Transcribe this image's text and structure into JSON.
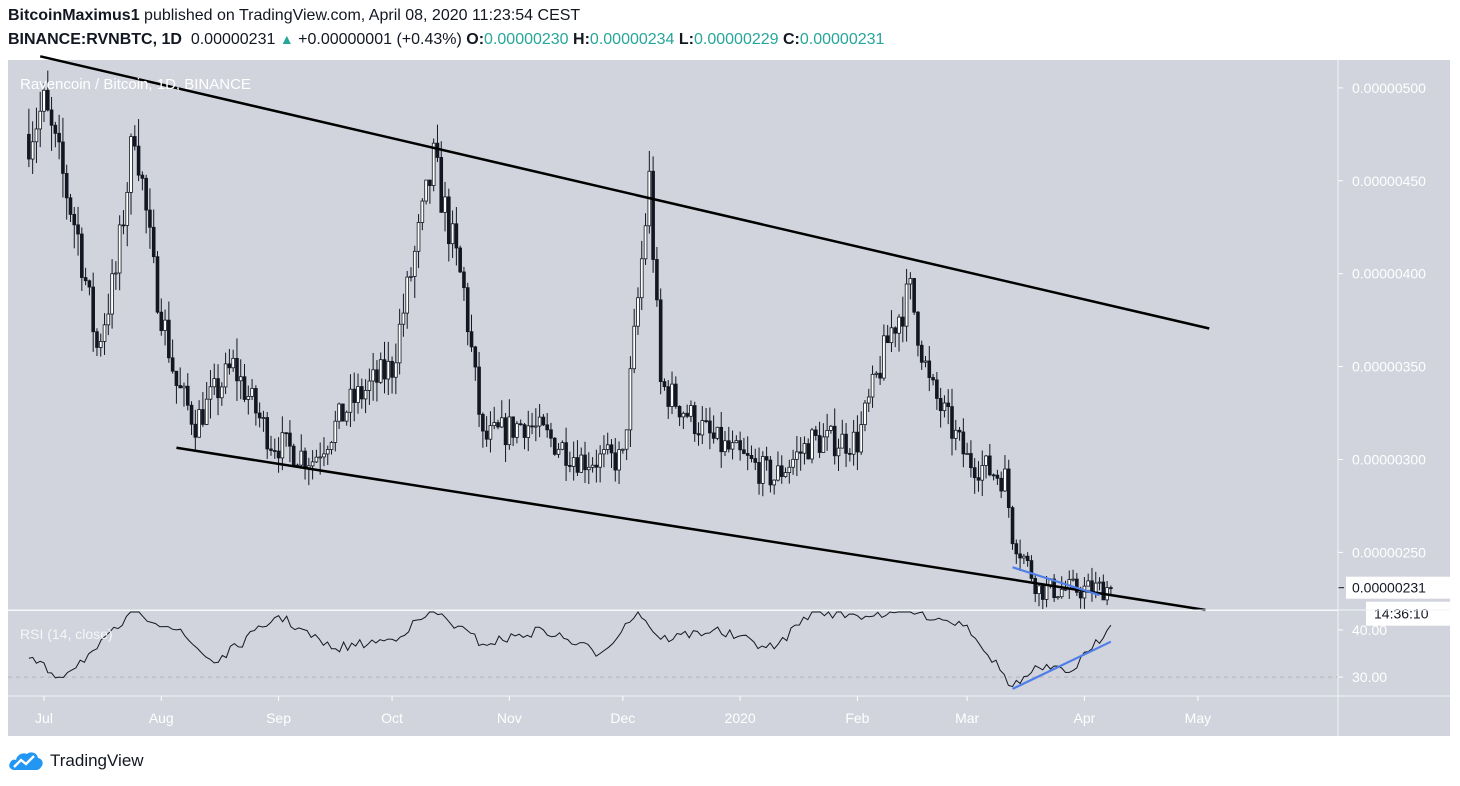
{
  "header": {
    "author": "BitcoinMaximus1",
    "published_text": "published on TradingView.com, April 08, 2020 11:23:54 CEST",
    "symbol": "BINANCE:RVNBTC, 1D",
    "last": "0.00000231",
    "change": "+0.00000001 (+0.43%)",
    "o_label": "O:",
    "o": "0.00000230",
    "h_label": "H:",
    "h": "0.00000234",
    "l_label": "L:",
    "l": "0.00000229",
    "c_label": "C:",
    "c": "0.00000231"
  },
  "colors": {
    "bg": "#d1d4dc",
    "candle": "#131722",
    "trend": "#000000",
    "blue": "#4f7ee8",
    "up": "#26a69a"
  },
  "chart_data": [
    {
      "type": "candlestick",
      "title": "Ravencoin / Bitcoin, 1D, BINANCE",
      "x_ticks": [
        "Jul",
        "Aug",
        "Sep",
        "Oct",
        "Nov",
        "Dec",
        "2020",
        "Feb",
        "Mar",
        "Apr",
        "May"
      ],
      "y_ticks": [
        5e-06,
        4.5e-06,
        4e-06,
        3.5e-06,
        3e-06,
        2.5e-06
      ],
      "y_tick_labels": [
        "0.00000500",
        "0.00000450",
        "0.00000400",
        "0.00000350",
        "0.00000300",
        "0.00000250"
      ],
      "ylim": [
        2.19e-06,
        5.15e-06
      ],
      "last_price_label": "0.00000231",
      "countdown": "14:36:10",
      "trendlines": [
        {
          "name": "channel-top",
          "from": [
            "2019-06-30",
            5.17e-06
          ],
          "to": [
            "2020-05-04",
            3.705e-06
          ]
        },
        {
          "name": "channel-bottom",
          "from": [
            "2019-08-05",
            3.063e-06
          ],
          "to": [
            "2020-05-03",
            2.19e-06
          ]
        },
        {
          "name": "price-support",
          "from": [
            "2020-03-13",
            2.42e-06
          ],
          "to": [
            "2020-04-05",
            2.27e-06
          ]
        }
      ],
      "closes": [
        [
          "2019-06-27",
          4.75e-06
        ],
        [
          "2019-07-01",
          4.9e-06
        ],
        [
          "2019-07-05",
          4.6e-06
        ],
        [
          "2019-07-10",
          4.2e-06
        ],
        [
          "2019-07-15",
          3.6e-06
        ],
        [
          "2019-07-20",
          4e-06
        ],
        [
          "2019-07-25",
          4.8e-06
        ],
        [
          "2019-07-30",
          4e-06
        ],
        [
          "2019-08-05",
          3.4e-06
        ],
        [
          "2019-08-10",
          3.2e-06
        ],
        [
          "2019-08-20",
          3.5e-06
        ],
        [
          "2019-08-30",
          3.1e-06
        ],
        [
          "2019-09-10",
          3e-06
        ],
        [
          "2019-09-20",
          3.3e-06
        ],
        [
          "2019-10-01",
          3.5e-06
        ],
        [
          "2019-10-12",
          4.6e-06
        ],
        [
          "2019-10-20",
          3.9e-06
        ],
        [
          "2019-10-25",
          3.1e-06
        ],
        [
          "2019-11-05",
          3.2e-06
        ],
        [
          "2019-11-20",
          3e-06
        ],
        [
          "2019-12-01",
          3e-06
        ],
        [
          "2019-12-08",
          4.5e-06
        ],
        [
          "2019-12-11",
          3.4e-06
        ],
        [
          "2019-12-25",
          3.1e-06
        ],
        [
          "2020-01-10",
          2.9e-06
        ],
        [
          "2020-01-20",
          3.1e-06
        ],
        [
          "2020-02-01",
          3.1e-06
        ],
        [
          "2020-02-10",
          3.7e-06
        ],
        [
          "2020-02-15",
          3.9e-06
        ],
        [
          "2020-02-20",
          3.4e-06
        ],
        [
          "2020-03-01",
          3e-06
        ],
        [
          "2020-03-11",
          2.9e-06
        ],
        [
          "2020-03-13",
          2.6e-06
        ],
        [
          "2020-03-20",
          2.3e-06
        ],
        [
          "2020-04-01",
          2.3e-06
        ],
        [
          "2020-04-08",
          2.31e-06
        ]
      ]
    },
    {
      "type": "line",
      "title": "RSI (14, close)",
      "y_ticks": [
        40,
        30
      ],
      "y_tick_labels": [
        "40.00",
        "30.00"
      ],
      "ylim": [
        26,
        44
      ],
      "trendlines": [
        {
          "name": "rsi-divergence",
          "from": [
            "2020-03-13",
            27.5
          ],
          "to": [
            "2020-04-08",
            37.5
          ]
        }
      ],
      "x": [
        "2019-06-27",
        "2019-07-05",
        "2019-07-15",
        "2019-07-25",
        "2019-08-05",
        "2019-08-15",
        "2019-09-01",
        "2019-09-15",
        "2019-10-01",
        "2019-10-12",
        "2019-10-25",
        "2019-11-10",
        "2019-11-25",
        "2019-12-05",
        "2019-12-11",
        "2019-12-25",
        "2020-01-10",
        "2020-01-20",
        "2020-02-01",
        "2020-02-15",
        "2020-03-01",
        "2020-03-13",
        "2020-03-20",
        "2020-03-28",
        "2020-04-03",
        "2020-04-08"
      ],
      "y": [
        34,
        30,
        36,
        44,
        40,
        33,
        43,
        36,
        38,
        44,
        37,
        40,
        35,
        44,
        38,
        40,
        36,
        44,
        43,
        44,
        41,
        28,
        32,
        31,
        36,
        41
      ]
    }
  ],
  "footer": {
    "brand": "TradingView"
  }
}
